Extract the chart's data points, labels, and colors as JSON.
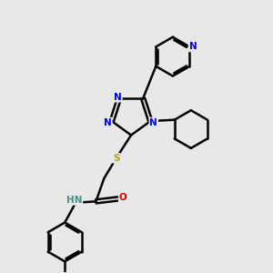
{
  "bg_color": "#e8e8e8",
  "bond_color": "#000000",
  "bond_width": 1.8,
  "atom_colors": {
    "N": "#0000dd",
    "S": "#aaaa00",
    "O": "#dd0000",
    "H": "#4a9090",
    "C": "#000000"
  },
  "xlim": [
    0,
    10
  ],
  "ylim": [
    0,
    10
  ]
}
